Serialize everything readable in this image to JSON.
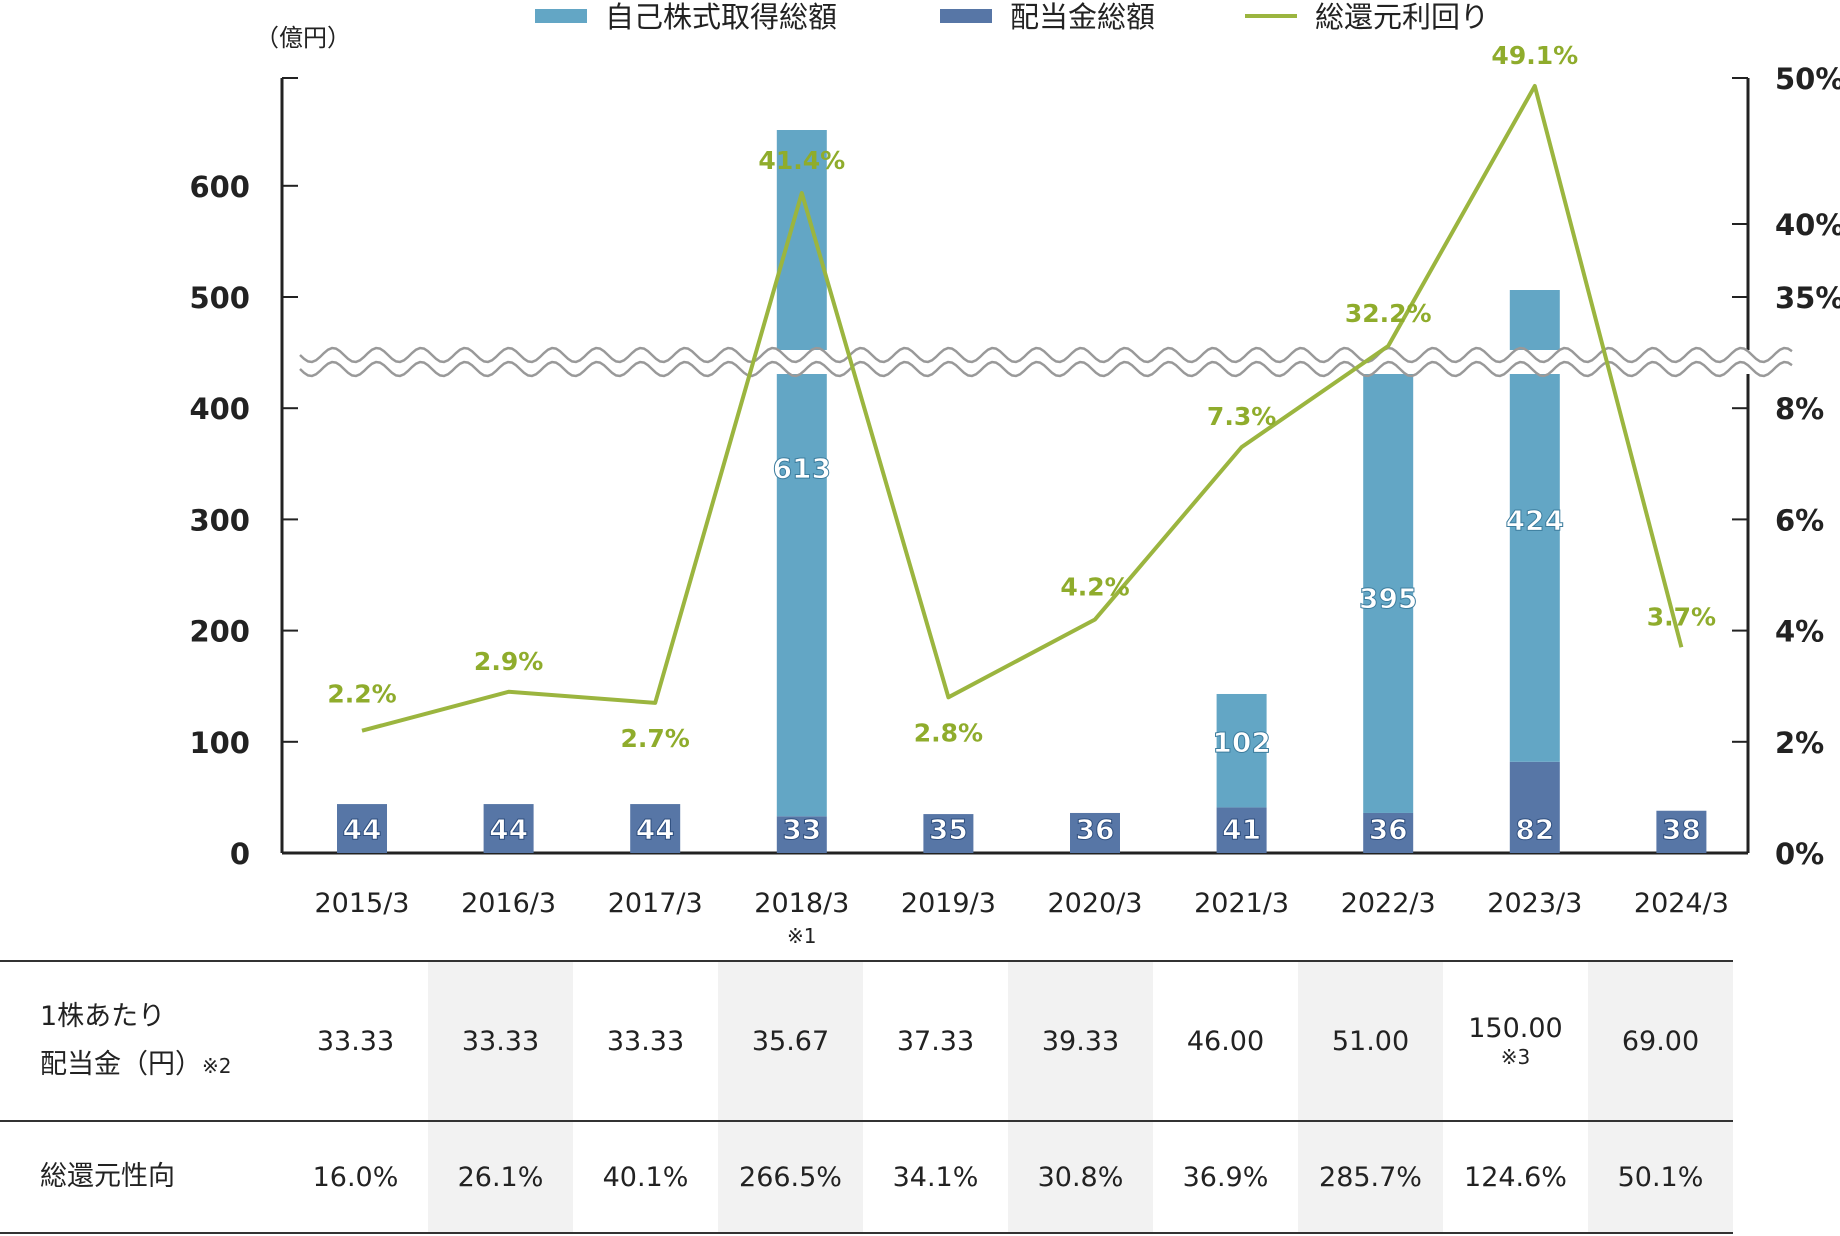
{
  "chart_data": {
    "type": "bar+line",
    "legend": [
      {
        "label": "自己株式取得総額",
        "color": "#63a6c5",
        "kind": "bar"
      },
      {
        "label": "配当金総額",
        "color": "#5776a6",
        "kind": "bar"
      },
      {
        "label": "総還元利回り",
        "color": "#9bb53f",
        "kind": "line"
      }
    ],
    "y_left_unit": "（億円）",
    "y_left_ticks": [
      "0",
      "100",
      "200",
      "300",
      "400",
      "500",
      "600"
    ],
    "y_right_ticks": [
      "0%",
      "2%",
      "4%",
      "6%",
      "8%",
      "35%",
      "40%",
      "50%"
    ],
    "axis_break": {
      "left": 450,
      "right_low": "8%",
      "right_high": "35%"
    },
    "categories": [
      "2015/3",
      "2016/3",
      "2017/3",
      "2018/3",
      "2019/3",
      "2020/3",
      "2021/3",
      "2022/3",
      "2023/3",
      "2024/3"
    ],
    "category_notes": [
      "",
      "",
      "",
      "※1",
      "",
      "",
      "",
      "",
      "",
      ""
    ],
    "series": [
      {
        "name": "配当金総額",
        "values": [
          44,
          44,
          44,
          33,
          35,
          36,
          41,
          36,
          82,
          38
        ]
      },
      {
        "name": "自己株式取得総額",
        "values": [
          null,
          null,
          null,
          613,
          null,
          null,
          102,
          395,
          424,
          null
        ]
      },
      {
        "name": "総還元利回り",
        "values": [
          2.2,
          2.9,
          2.7,
          41.4,
          2.8,
          4.2,
          7.3,
          32.2,
          49.1,
          3.7
        ],
        "labels": [
          "2.2%",
          "2.9%",
          "2.7%",
          "41.4%",
          "2.8%",
          "4.2%",
          "7.3%",
          "32.2%",
          "49.1%",
          "3.7%"
        ]
      }
    ]
  },
  "table": {
    "dividend_label_line1": "1株あたり",
    "dividend_label_line2": "配当金（円）",
    "dividend_label_note": "※2",
    "dividend_values": [
      "33.33",
      "33.33",
      "33.33",
      "35.67",
      "37.33",
      "39.33",
      "46.00",
      "51.00",
      "150.00",
      "69.00"
    ],
    "dividend_notes": [
      "",
      "",
      "",
      "",
      "",
      "",
      "",
      "",
      "※3",
      ""
    ],
    "payout_label": "総還元性向",
    "payout_values": [
      "16.0%",
      "26.1%",
      "40.1%",
      "266.5%",
      "34.1%",
      "30.8%",
      "36.9%",
      "285.7%",
      "124.6%",
      "50.1%"
    ]
  }
}
